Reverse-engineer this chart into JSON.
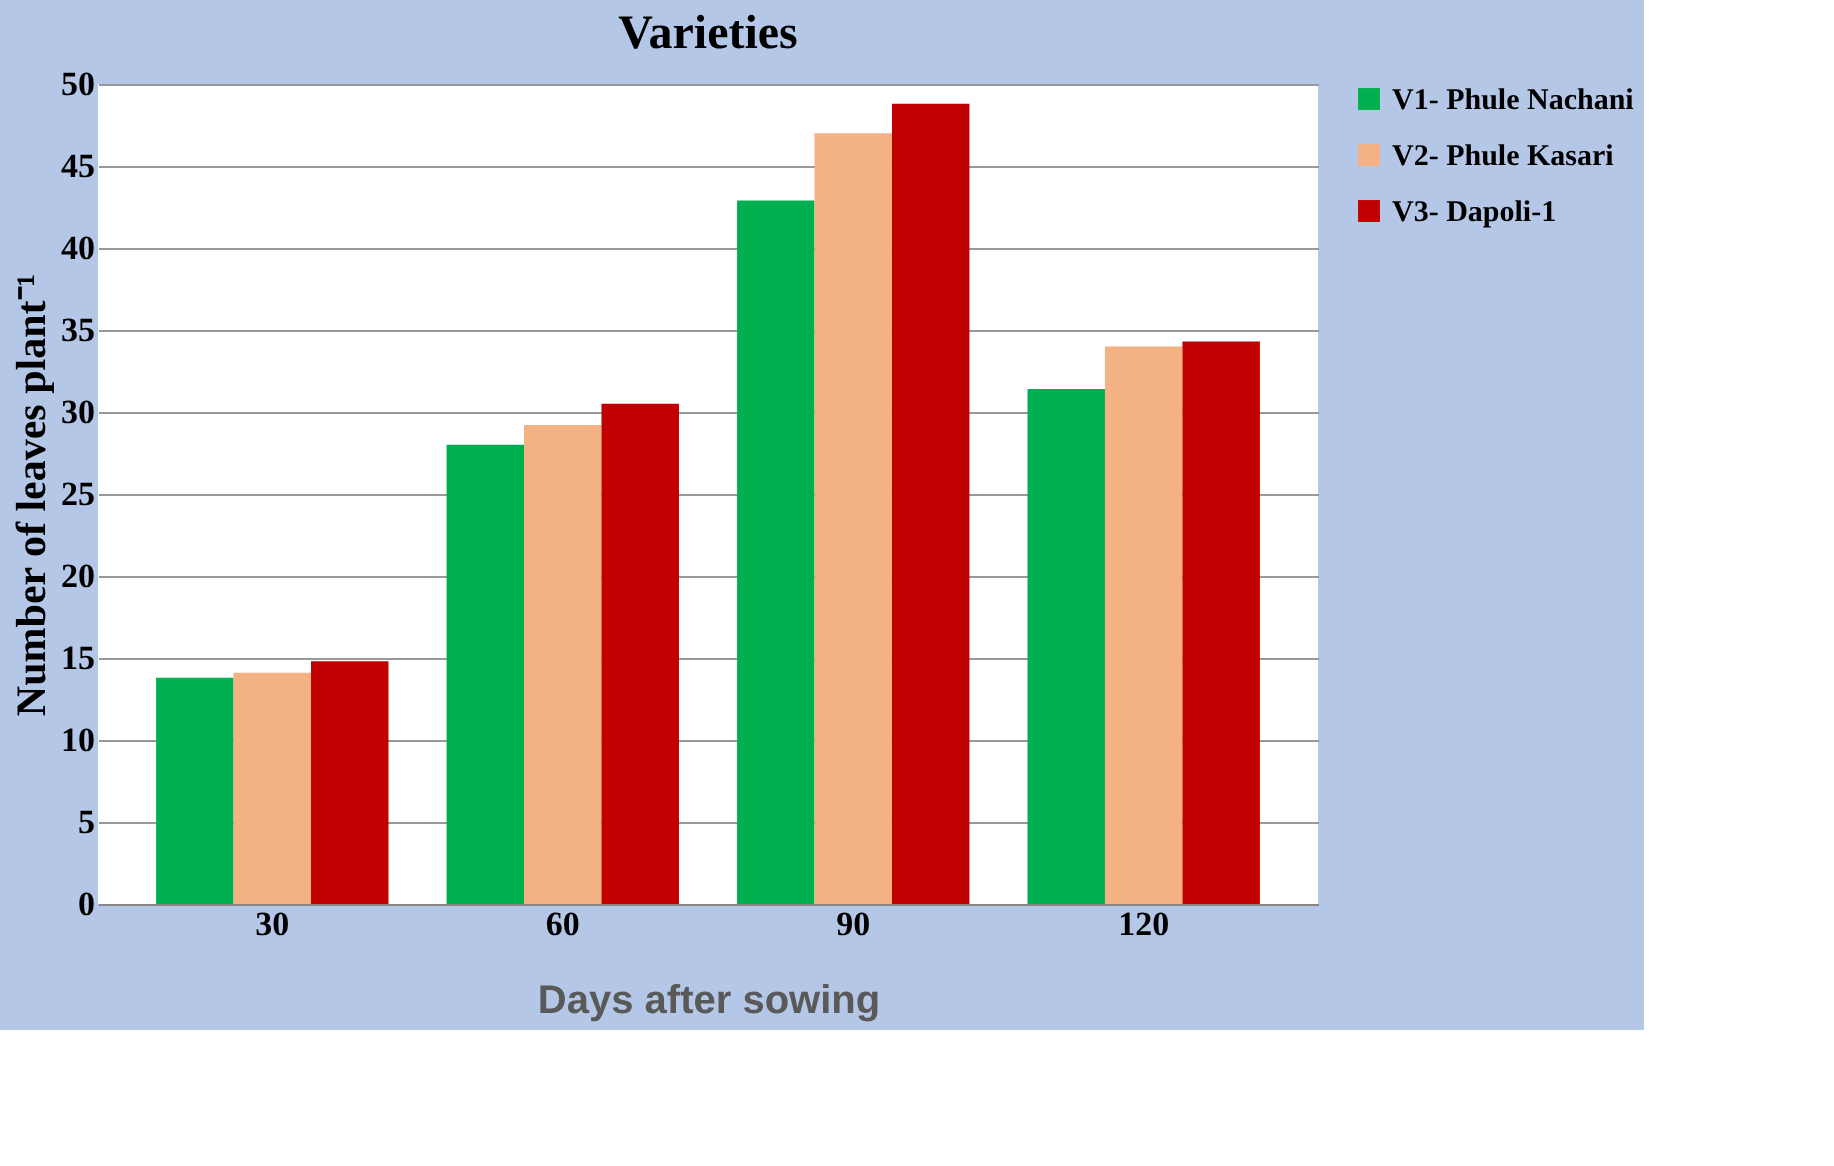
{
  "chart_data": {
    "type": "bar",
    "title": "Varieties",
    "xlabel": "Days after sowing",
    "ylabel": "Number of leaves plant⁻¹",
    "categories": [
      "30",
      "60",
      "90",
      "120"
    ],
    "series": [
      {
        "name": "V1- Phule Nachani",
        "color": "#00b050",
        "values": [
          13.8,
          28.0,
          42.9,
          31.4
        ]
      },
      {
        "name": "V2- Phule Kasari",
        "color": "#f4b183",
        "values": [
          14.1,
          29.2,
          47.0,
          34.0
        ]
      },
      {
        "name": "V3- Dapoli-1",
        "color": "#c00000",
        "values": [
          14.8,
          30.5,
          48.8,
          34.3
        ]
      }
    ],
    "ylim": [
      0,
      50
    ],
    "yticks": [
      0,
      5,
      10,
      15,
      20,
      25,
      30,
      35,
      40,
      45,
      50
    ],
    "grid": "y",
    "legend": "top right"
  }
}
